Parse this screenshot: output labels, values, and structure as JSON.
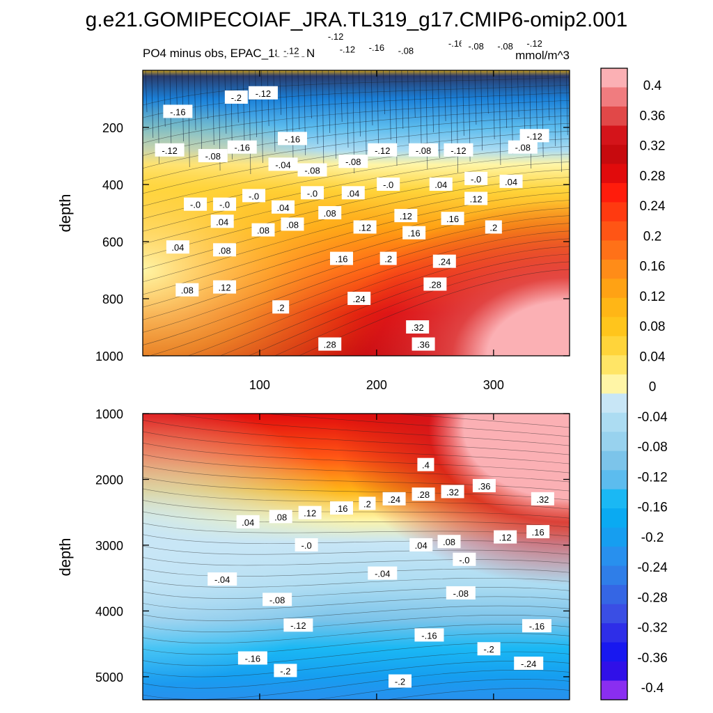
{
  "chart_data": {
    "type": "heatmap",
    "title": "g.e21.GOMIPECOIAF_JRA.TL319_g17.CMIP6-omip2.001",
    "subtitle": "PO4 minus obs, EPAC_18S-18N",
    "units": "mmol/m^3",
    "colorbar": {
      "levels": [
        "0.4",
        "0.36",
        "0.32",
        "0.28",
        "0.24",
        "0.2",
        "0.16",
        "0.12",
        "0.08",
        "0.04",
        "0",
        "-0.04",
        "-0.08",
        "-0.12",
        "-0.16",
        "-0.2",
        "-0.24",
        "-0.28",
        "-0.32",
        "-0.36",
        "-0.4"
      ],
      "colors": [
        "#fbb0b4",
        "#f07c7f",
        "#e14848",
        "#d4141a",
        "#c70a0e",
        "#e10b0c",
        "#ff1c0c",
        "#ff3a10",
        "#ff5515",
        "#ff7118",
        "#ff8c18",
        "#ffa214",
        "#ffb616",
        "#ffc51c",
        "#ffd43a",
        "#ffe566",
        "#fff5a6",
        "#c8e6f6",
        "#acdcf2",
        "#98d2ee",
        "#7cc4ea",
        "#5cbcee",
        "#1ab8f4",
        "#0aaaf2",
        "#169ef0",
        "#2890ee",
        "#2f7ee8",
        "#3566e4",
        "#3a4ee4",
        "#2e2ee8",
        "#1818f0",
        "#3010e8",
        "#8a2ef0"
      ]
    },
    "panels": [
      {
        "name": "upper",
        "ylabel": "depth",
        "ylim": [
          1000,
          0
        ],
        "xlim": [
          0,
          365
        ],
        "yticks": [
          200,
          400,
          600,
          800,
          1000
        ],
        "xticks": [
          100,
          200,
          300
        ],
        "contour_labels": [
          {
            "text": "-.16",
            "x": 30,
            "y": 145
          },
          {
            "text": "-.2",
            "x": 80,
            "y": 95
          },
          {
            "text": "-.12",
            "x": 103,
            "y": 80
          },
          {
            "text": "-.12",
            "x": 127,
            "y": -70
          },
          {
            "text": "-.12",
            "x": 175,
            "y": -75
          },
          {
            "text": "-.08",
            "x": 225,
            "y": -70
          },
          {
            "text": "-.16",
            "x": 200,
            "y": -80
          },
          {
            "text": "-.16",
            "x": 268,
            "y": -95
          },
          {
            "text": "-.08",
            "x": 285,
            "y": -85
          },
          {
            "text": "-.08",
            "x": 310,
            "y": -85
          },
          {
            "text": "-.12",
            "x": 335,
            "y": -95
          },
          {
            "text": "-.12",
            "x": 23,
            "y": 280
          },
          {
            "text": "-.08",
            "x": 60,
            "y": 300
          },
          {
            "text": "-.16",
            "x": 85,
            "y": 270
          },
          {
            "text": "-.16",
            "x": 128,
            "y": 240
          },
          {
            "text": "-.04",
            "x": 120,
            "y": 330
          },
          {
            "text": "-.08",
            "x": 145,
            "y": 350
          },
          {
            "text": "-.12",
            "x": 165,
            "y": -120
          },
          {
            "text": "-.08",
            "x": 180,
            "y": 320
          },
          {
            "text": "-.12",
            "x": 205,
            "y": 280
          },
          {
            "text": "-.08",
            "x": 240,
            "y": 280
          },
          {
            "text": "-.12",
            "x": 270,
            "y": 280
          },
          {
            "text": "-.08",
            "x": 325,
            "y": 270
          },
          {
            "text": "-.12",
            "x": 335,
            "y": 230
          },
          {
            "text": "-.0",
            "x": 285,
            "y": 380
          },
          {
            "text": ".04",
            "x": 315,
            "y": 390
          },
          {
            "text": "-.0",
            "x": 45,
            "y": 470
          },
          {
            "text": "-.0",
            "x": 70,
            "y": 470
          },
          {
            "text": "-.0",
            "x": 95,
            "y": 440
          },
          {
            "text": "-.0",
            "x": 145,
            "y": 430
          },
          {
            "text": "-.0",
            "x": 210,
            "y": 400
          },
          {
            "text": ".04",
            "x": 180,
            "y": 430
          },
          {
            "text": ".04",
            "x": 255,
            "y": 400
          },
          {
            "text": ".04",
            "x": 120,
            "y": 480
          },
          {
            "text": ".12",
            "x": 285,
            "y": 450
          },
          {
            "text": ".12",
            "x": 225,
            "y": 510
          },
          {
            "text": ".04",
            "x": 68,
            "y": 530
          },
          {
            "text": ".08",
            "x": 103,
            "y": 560
          },
          {
            "text": ".08",
            "x": 128,
            "y": 540
          },
          {
            "text": ".08",
            "x": 160,
            "y": 500
          },
          {
            "text": ".12",
            "x": 190,
            "y": 550
          },
          {
            "text": ".16",
            "x": 232,
            "y": 570
          },
          {
            "text": ".16",
            "x": 265,
            "y": 520
          },
          {
            "text": ".2",
            "x": 300,
            "y": 550
          },
          {
            "text": ".04",
            "x": 30,
            "y": 620
          },
          {
            "text": ".08",
            "x": 70,
            "y": 630
          },
          {
            "text": ".16",
            "x": 170,
            "y": 660
          },
          {
            "text": ".2",
            "x": 210,
            "y": 660
          },
          {
            "text": ".24",
            "x": 258,
            "y": 670
          },
          {
            "text": ".08",
            "x": 38,
            "y": 770
          },
          {
            "text": ".12",
            "x": 70,
            "y": 760
          },
          {
            "text": ".2",
            "x": 118,
            "y": 830
          },
          {
            "text": ".24",
            "x": 185,
            "y": 800
          },
          {
            "text": ".28",
            "x": 250,
            "y": 750
          },
          {
            "text": ".32",
            "x": 235,
            "y": 900
          },
          {
            "text": ".28",
            "x": 160,
            "y": 960
          },
          {
            "text": ".36",
            "x": 240,
            "y": 960
          }
        ]
      },
      {
        "name": "lower",
        "ylabel": "depth",
        "ylim": [
          5350,
          1000
        ],
        "xlim": [
          0,
          365
        ],
        "yticks": [
          1000,
          2000,
          3000,
          4000,
          5000
        ],
        "contour_labels": [
          {
            "text": ".4",
            "x": 242,
            "y": 1780
          },
          {
            "text": ".36",
            "x": 292,
            "y": 2100
          },
          {
            "text": ".32",
            "x": 342,
            "y": 2300
          },
          {
            "text": ".28",
            "x": 240,
            "y": 2230
          },
          {
            "text": ".32",
            "x": 265,
            "y": 2190
          },
          {
            "text": ".24",
            "x": 215,
            "y": 2300
          },
          {
            "text": ".2",
            "x": 192,
            "y": 2370
          },
          {
            "text": ".16",
            "x": 170,
            "y": 2440
          },
          {
            "text": ".12",
            "x": 143,
            "y": 2510
          },
          {
            "text": ".08",
            "x": 118,
            "y": 2570
          },
          {
            "text": ".04",
            "x": 90,
            "y": 2650
          },
          {
            "text": ".16",
            "x": 338,
            "y": 2800
          },
          {
            "text": ".12",
            "x": 310,
            "y": 2880
          },
          {
            "text": ".08",
            "x": 262,
            "y": 2950
          },
          {
            "text": ".04",
            "x": 238,
            "y": 3000
          },
          {
            "text": "-.0",
            "x": 140,
            "y": 3000
          },
          {
            "text": "-.0",
            "x": 275,
            "y": 3220
          },
          {
            "text": "-.04",
            "x": 68,
            "y": 3520
          },
          {
            "text": "-.04",
            "x": 205,
            "y": 3430
          },
          {
            "text": "-.08",
            "x": 115,
            "y": 3830
          },
          {
            "text": "-.08",
            "x": 272,
            "y": 3730
          },
          {
            "text": "-.12",
            "x": 133,
            "y": 4220
          },
          {
            "text": "-.16",
            "x": 245,
            "y": 4370
          },
          {
            "text": "-.16",
            "x": 337,
            "y": 4230
          },
          {
            "text": "-.2",
            "x": 296,
            "y": 4580
          },
          {
            "text": "-.16",
            "x": 94,
            "y": 4720
          },
          {
            "text": "-.2",
            "x": 122,
            "y": 4910
          },
          {
            "text": "-.24",
            "x": 330,
            "y": 4800
          },
          {
            "text": "-.2",
            "x": 220,
            "y": 5070
          }
        ]
      }
    ]
  }
}
